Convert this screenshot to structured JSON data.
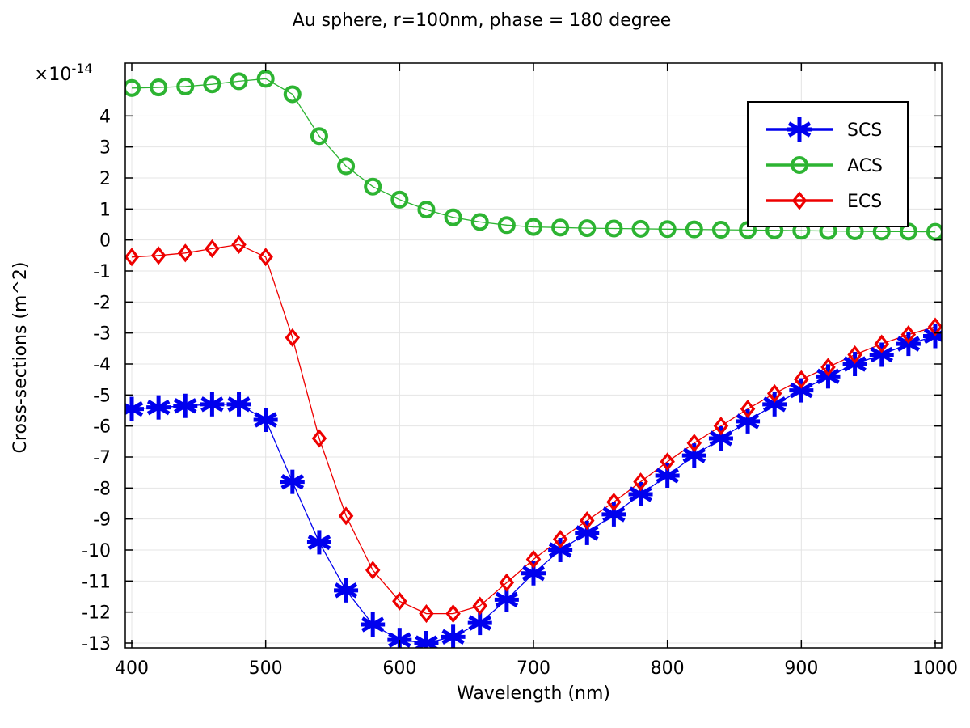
{
  "chart_data": {
    "type": "line",
    "title": "Au sphere, r=100nm, phase = 180 degree",
    "xlabel": "Wavelength (nm)",
    "ylabel": "Cross-sections (m^2)",
    "y_multiplier_base": "×10",
    "y_multiplier_exp": "-14",
    "xlim": [
      400,
      1000
    ],
    "ylim": [
      -13,
      5
    ],
    "x_ticks": [
      400,
      500,
      600,
      700,
      800,
      900,
      1000
    ],
    "y_ticks": [
      -13,
      -12,
      -11,
      -10,
      -9,
      -8,
      -7,
      -6,
      -5,
      -4,
      -3,
      -2,
      -1,
      0,
      1,
      2,
      3,
      4
    ],
    "grid": true,
    "legend_position": "top-right",
    "x": [
      400,
      420,
      440,
      460,
      480,
      500,
      520,
      540,
      560,
      580,
      600,
      620,
      640,
      660,
      680,
      700,
      720,
      740,
      760,
      780,
      800,
      820,
      840,
      860,
      880,
      900,
      920,
      940,
      960,
      980,
      1000
    ],
    "series": [
      {
        "name": "SCS",
        "color": "#0000ee",
        "marker": "asterisk",
        "values": [
          -5.45,
          -5.4,
          -5.35,
          -5.3,
          -5.3,
          -5.8,
          -7.8,
          -9.75,
          -11.3,
          -12.4,
          -12.9,
          -13.0,
          -12.8,
          -12.35,
          -11.6,
          -10.75,
          -10.0,
          -9.45,
          -8.85,
          -8.2,
          -7.6,
          -6.95,
          -6.4,
          -5.85,
          -5.3,
          -4.85,
          -4.4,
          -4.0,
          -3.7,
          -3.35,
          -3.1
        ]
      },
      {
        "name": "ACS",
        "color": "#2db432",
        "marker": "circle",
        "values": [
          4.9,
          4.92,
          4.95,
          5.02,
          5.12,
          5.2,
          4.7,
          3.35,
          2.38,
          1.72,
          1.3,
          0.98,
          0.73,
          0.58,
          0.48,
          0.42,
          0.4,
          0.38,
          0.37,
          0.36,
          0.35,
          0.34,
          0.33,
          0.32,
          0.31,
          0.3,
          0.29,
          0.28,
          0.27,
          0.27,
          0.26
        ]
      },
      {
        "name": "ECS",
        "color": "#ee0000",
        "marker": "diamond",
        "values": [
          -0.55,
          -0.5,
          -0.42,
          -0.28,
          -0.15,
          -0.55,
          -3.15,
          -6.4,
          -8.9,
          -10.65,
          -11.65,
          -12.05,
          -12.05,
          -11.8,
          -11.05,
          -10.3,
          -9.65,
          -9.05,
          -8.45,
          -7.8,
          -7.15,
          -6.55,
          -6.0,
          -5.45,
          -4.95,
          -4.5,
          -4.1,
          -3.7,
          -3.35,
          -3.05,
          -2.8
        ]
      }
    ]
  }
}
